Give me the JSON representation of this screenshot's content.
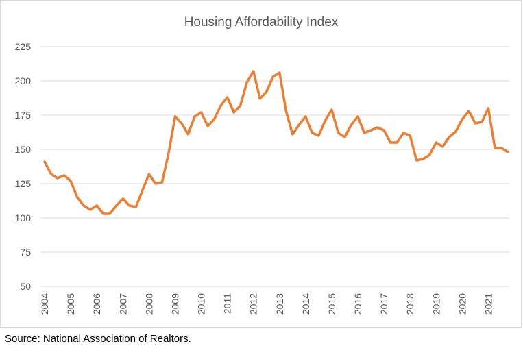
{
  "colors": {
    "line": "#ED7D31",
    "grid": "#D9D9D9",
    "text": "#595959"
  },
  "source": "Source: National Association of Realtors.",
  "chart_data": {
    "type": "line",
    "title": "Housing Affordability Index",
    "xlabel": "",
    "ylabel": "",
    "ylim": [
      50,
      225
    ],
    "yticks": [
      50,
      75,
      100,
      125,
      150,
      175,
      200,
      225
    ],
    "xticks": [
      "2004",
      "2005",
      "2006",
      "2007",
      "2008",
      "2009",
      "2010",
      "2011",
      "2012",
      "2013",
      "2014",
      "2015",
      "2016",
      "2017",
      "2018",
      "2019",
      "2020",
      "2021"
    ],
    "grid": true,
    "legend": "none",
    "series": [
      {
        "name": "Housing Affordability Index",
        "frequency": "quarterly",
        "start": "2004",
        "values": [
          141,
          132,
          129,
          131,
          127,
          115,
          109,
          106,
          109,
          103,
          103,
          109,
          114,
          109,
          108,
          120,
          132,
          125,
          126,
          147,
          174,
          169,
          161,
          174,
          177,
          167,
          172,
          182,
          188,
          177,
          182,
          199,
          207,
          187,
          192,
          203,
          206,
          178,
          161,
          168,
          174,
          162,
          160,
          171,
          179,
          162,
          159,
          168,
          174,
          162,
          164,
          166,
          164,
          155,
          155,
          162,
          160,
          142,
          143,
          146,
          155,
          152,
          159,
          163,
          172,
          178,
          169,
          170,
          180,
          151,
          151,
          148
        ]
      }
    ]
  }
}
